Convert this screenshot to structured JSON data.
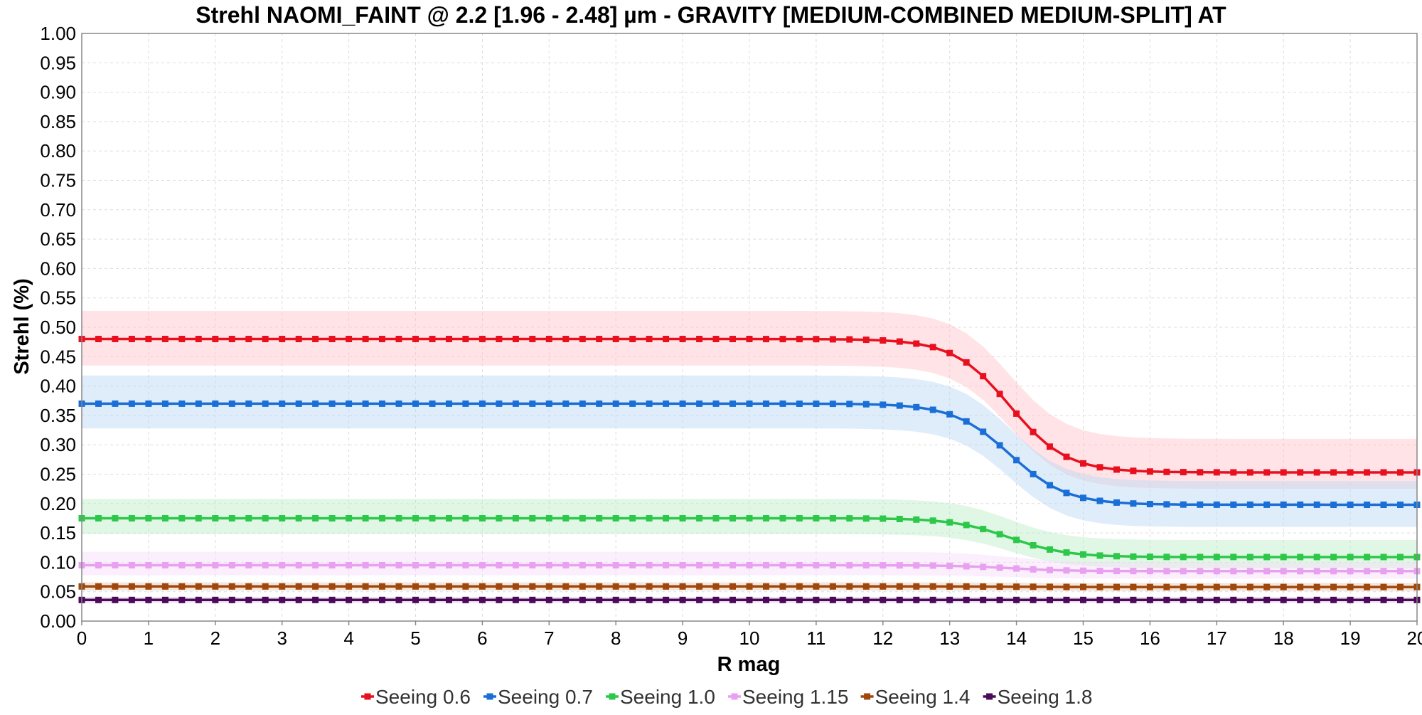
{
  "chart_data": {
    "type": "line",
    "title": "Strehl NAOMI_FAINT @ 2.2 [1.96 - 2.48] µm - GRAVITY [MEDIUM-COMBINED MEDIUM-SPLIT] AT",
    "xlabel": "R mag",
    "ylabel": "Strehl (%)",
    "xlim": [
      0,
      20
    ],
    "ylim": [
      0,
      1
    ],
    "xticks": [
      "0",
      "1",
      "2",
      "3",
      "4",
      "5",
      "6",
      "7",
      "8",
      "9",
      "10",
      "11",
      "12",
      "13",
      "14",
      "15",
      "16",
      "17",
      "18",
      "19",
      "20"
    ],
    "yticks": [
      "0.00",
      "0.05",
      "0.10",
      "0.15",
      "0.20",
      "0.25",
      "0.30",
      "0.35",
      "0.40",
      "0.45",
      "0.50",
      "0.55",
      "0.60",
      "0.65",
      "0.70",
      "0.75",
      "0.80",
      "0.85",
      "0.90",
      "0.95",
      "1.00"
    ],
    "grid": true,
    "legend_position": "bottom",
    "transition_center": 13.9,
    "transition_width": 0.42,
    "x_step": 0.25,
    "series": [
      {
        "name": "Seeing 0.6",
        "color": "#e8101e",
        "band_color": "#ffc0c8",
        "bright": 0.48,
        "faint": 0.253,
        "band_bright": [
          0.435,
          0.528
        ],
        "band_faint": [
          0.225,
          0.31
        ]
      },
      {
        "name": "Seeing 0.7",
        "color": "#1a6fd6",
        "band_color": "#b8d6f6",
        "bright": 0.37,
        "faint": 0.198,
        "band_bright": [
          0.328,
          0.418
        ],
        "band_faint": [
          0.16,
          0.238
        ]
      },
      {
        "name": "Seeing 1.0",
        "color": "#2dc84a",
        "band_color": "#bdeec8",
        "bright": 0.175,
        "faint": 0.109,
        "band_bright": [
          0.148,
          0.208
        ],
        "band_faint": [
          0.09,
          0.138
        ]
      },
      {
        "name": "Seeing 1.15",
        "color": "#e8a0f0",
        "band_color": "#f8dcfb",
        "bright": 0.095,
        "faint": 0.085,
        "band_bright": [
          0.078,
          0.118
        ],
        "band_faint": [
          0.072,
          0.1
        ]
      },
      {
        "name": "Seeing 1.4",
        "color": "#a0470c",
        "band_color": "#e8c8b0",
        "bright": 0.059,
        "faint": 0.058,
        "band_bright": [
          0.052,
          0.066
        ],
        "band_faint": [
          0.051,
          0.065
        ]
      },
      {
        "name": "Seeing 1.8",
        "color": "#4b0a5a",
        "band_color": "#d8c0dc",
        "bright": 0.036,
        "faint": 0.036,
        "band_bright": [
          0.031,
          0.041
        ],
        "band_faint": [
          0.031,
          0.041
        ]
      }
    ]
  }
}
